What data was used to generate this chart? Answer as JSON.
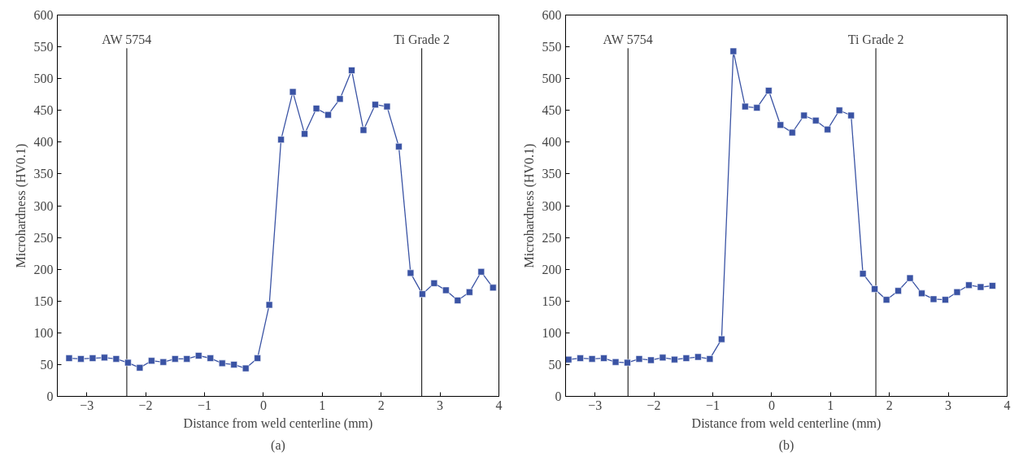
{
  "chart_data": [
    {
      "type": "line",
      "xlabel": "Distance from weld centerline (mm)",
      "ylabel": "Microhardness (HV0.1)",
      "annotations": [
        "(a)"
      ],
      "marker": "square",
      "line_style": "solid",
      "grid": false,
      "xlim": [
        -3.5,
        4
      ],
      "xticks": [
        {
          "value": -3,
          "label": "−3"
        },
        {
          "value": -2,
          "label": "−2"
        },
        {
          "value": -1,
          "label": "−1"
        },
        0,
        1,
        2,
        3,
        4
      ],
      "ylim": [
        0,
        600
      ],
      "yticks": [
        0,
        50,
        100,
        150,
        200,
        250,
        300,
        350,
        400,
        450,
        500,
        550,
        600
      ],
      "ref_lines": [
        {
          "axis": "x",
          "value": -2.32,
          "label": "AW 5754",
          "color": "#000000"
        },
        {
          "axis": "x",
          "value": 2.69,
          "label": "Ti Grade 2",
          "color": "#000000"
        }
      ],
      "x": [
        -3.3,
        -3.1,
        -2.9,
        -2.7,
        -2.5,
        -2.3,
        -2.1,
        -1.9,
        -1.7,
        -1.5,
        -1.3,
        -1.1,
        -0.9,
        -0.7,
        -0.5,
        -0.3,
        -0.1,
        0.1,
        0.3,
        0.5,
        0.7,
        0.9,
        1.1,
        1.3,
        1.5,
        1.7,
        1.9,
        2.1,
        2.3,
        2.5,
        2.7,
        2.9,
        3.1,
        3.3,
        3.5,
        3.7,
        3.9
      ],
      "series": [
        {
          "color": "#3a53a4",
          "values": [
            60,
            59,
            60,
            61,
            59,
            53,
            45,
            56,
            54,
            59,
            59,
            64,
            60,
            52,
            50,
            44,
            60,
            144,
            404,
            479,
            413,
            453,
            443,
            468,
            513,
            419,
            459,
            456,
            393,
            194,
            161,
            178,
            167,
            151,
            164,
            196,
            171
          ]
        }
      ]
    },
    {
      "type": "line",
      "xlabel": "Distance from weld centerline (mm)",
      "ylabel": "Microhardness (HV0.1)",
      "annotations": [
        "(b)"
      ],
      "marker": "square",
      "line_style": "solid",
      "grid": false,
      "xlim": [
        -3.5,
        4
      ],
      "xticks": [
        {
          "value": -3,
          "label": "−3"
        },
        {
          "value": -2,
          "label": "−2"
        },
        {
          "value": -1,
          "label": "−1"
        },
        0,
        1,
        2,
        3,
        4
      ],
      "ylim": [
        0,
        600
      ],
      "yticks": [
        0,
        50,
        100,
        150,
        200,
        250,
        300,
        350,
        400,
        450,
        500,
        550,
        600
      ],
      "ref_lines": [
        {
          "axis": "x",
          "value": -2.44,
          "label": "AW 5754",
          "color": "#000000"
        },
        {
          "axis": "x",
          "value": 1.77,
          "label": "Ti Grade 2",
          "color": "#000000"
        }
      ],
      "x": [
        -3.45,
        -3.25,
        -3.05,
        -2.85,
        -2.65,
        -2.45,
        -2.25,
        -2.05,
        -1.85,
        -1.65,
        -1.45,
        -1.25,
        -1.05,
        -0.85,
        -0.65,
        -0.45,
        -0.25,
        -0.05,
        0.15,
        0.35,
        0.55,
        0.75,
        0.95,
        1.15,
        1.35,
        1.55,
        1.75,
        1.95,
        2.15,
        2.35,
        2.55,
        2.75,
        2.95,
        3.15,
        3.35,
        3.55,
        3.75
      ],
      "series": [
        {
          "color": "#3a53a4",
          "values": [
            58,
            60,
            59,
            60,
            54,
            53,
            59,
            57,
            61,
            58,
            60,
            62,
            59,
            90,
            543,
            456,
            454,
            481,
            427,
            415,
            442,
            434,
            420,
            450,
            442,
            193,
            169,
            152,
            166,
            186,
            162,
            153,
            152,
            164,
            175,
            172,
            174
          ]
        }
      ]
    }
  ]
}
